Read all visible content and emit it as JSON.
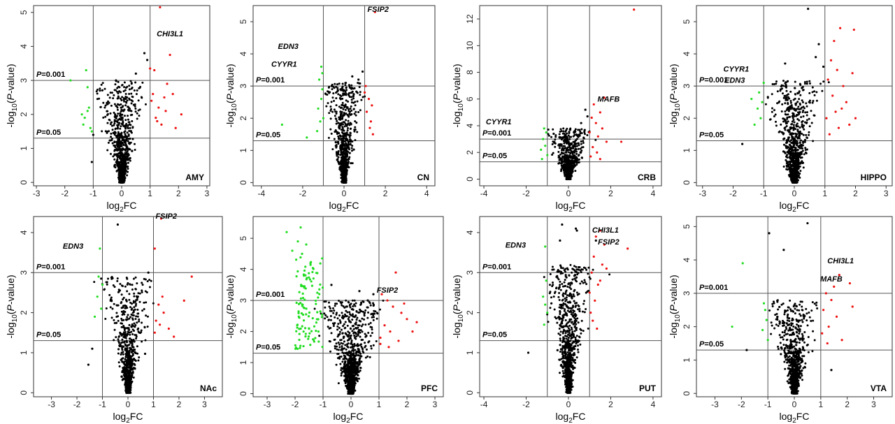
{
  "chart_data": [
    {
      "type": "scatter",
      "region": "AMY",
      "xlabel": "log2FC",
      "ylabel": "-log10(P-value)",
      "xlim": [
        -3.1,
        3.1
      ],
      "ylim": [
        -0.1,
        5.2
      ],
      "xticks": [
        -3,
        -2,
        -1,
        0,
        1,
        2,
        3
      ],
      "yticks": [
        0,
        1,
        2,
        3,
        4,
        5
      ],
      "thresholds": {
        "fc": 1,
        "p_lines": [
          {
            "label": "P=0.001",
            "y": 3
          },
          {
            "label": "P=0.05",
            "y": 1.301
          }
        ]
      },
      "cloud": {
        "width": 0.8,
        "max_y": 3.0,
        "n": 700
      },
      "green_points": [
        [
          -1.8,
          3.0
        ],
        [
          -1.25,
          3.3
        ],
        [
          -1.2,
          2.8
        ],
        [
          -1.15,
          2.2
        ],
        [
          -1.3,
          1.9
        ],
        [
          -1.1,
          1.6
        ],
        [
          -1.35,
          1.7
        ],
        [
          -1.05,
          1.5
        ],
        [
          -1.2,
          2.1
        ],
        [
          -1.4,
          2.0
        ]
      ],
      "red_points": [
        [
          1.35,
          5.15
        ],
        [
          1.7,
          3.75
        ],
        [
          1.15,
          3.3
        ],
        [
          1.0,
          3.35
        ],
        [
          1.1,
          2.6
        ],
        [
          1.5,
          2.5
        ],
        [
          1.3,
          2.2
        ],
        [
          1.8,
          2.6
        ],
        [
          2.1,
          2.0
        ],
        [
          1.2,
          1.9
        ],
        [
          1.4,
          1.7
        ],
        [
          1.6,
          2.9
        ],
        [
          1.05,
          2.4
        ],
        [
          1.9,
          1.6
        ],
        [
          1.25,
          1.8
        ],
        [
          1.55,
          2.1
        ]
      ],
      "black_points": [
        [
          0.8,
          3.8
        ],
        [
          0.9,
          3.6
        ],
        [
          -0.2,
          3.0
        ],
        [
          0.5,
          3.2
        ],
        [
          -1.0,
          1.4
        ],
        [
          -1.05,
          0.6
        ]
      ],
      "gene_labels": [
        {
          "text": "CHI3L1",
          "x": 1.7,
          "y": 4.3
        }
      ],
      "region_label": "AMY"
    },
    {
      "type": "scatter",
      "region": "CN",
      "xlabel": "log2FC",
      "ylabel": "-log10(P-value)",
      "xlim": [
        -4.4,
        4.4
      ],
      "ylim": [
        -0.1,
        5.5
      ],
      "xticks": [
        -4,
        -2,
        0,
        2,
        4
      ],
      "yticks": [
        0,
        1,
        2,
        3,
        4,
        5
      ],
      "thresholds": {
        "fc": 1,
        "p_lines": [
          {
            "label": "P=0.001",
            "y": 3
          },
          {
            "label": "P=0.05",
            "y": 1.301
          }
        ]
      },
      "cloud": {
        "width": 0.9,
        "max_y": 3.1,
        "n": 700
      },
      "green_points": [
        [
          -1.1,
          3.6
        ],
        [
          -1.05,
          3.4
        ],
        [
          -1.2,
          3.2
        ],
        [
          -1.1,
          2.6
        ],
        [
          -1.25,
          2.3
        ],
        [
          -1.0,
          2.0
        ],
        [
          -1.3,
          1.6
        ],
        [
          -1.15,
          1.9
        ],
        [
          -3.0,
          1.8
        ],
        [
          -1.8,
          1.4
        ],
        [
          -1.05,
          2.9
        ]
      ],
      "red_points": [
        [
          1.5,
          5.3
        ],
        [
          1.2,
          2.6
        ],
        [
          1.1,
          2.2
        ],
        [
          1.3,
          1.9
        ],
        [
          1.0,
          2.8
        ],
        [
          1.4,
          1.5
        ],
        [
          1.25,
          1.7
        ],
        [
          1.05,
          3.0
        ],
        [
          1.35,
          2.4
        ]
      ],
      "black_points": [
        [
          0.9,
          3.45
        ],
        [
          0.7,
          3.2
        ],
        [
          -0.6,
          3.0
        ],
        [
          0.4,
          3.3
        ]
      ],
      "gene_labels": [
        {
          "text": "FSIP2",
          "x": 1.65,
          "y": 5.3
        },
        {
          "text": "EDN3",
          "x": -2.7,
          "y": 4.15
        },
        {
          "text": "CYYR1",
          "x": -2.9,
          "y": 3.6
        }
      ],
      "region_label": "CN"
    },
    {
      "type": "scatter",
      "region": "CRB",
      "xlabel": "log2FC",
      "ylabel": "-log10(P-value)",
      "xlim": [
        -4.2,
        4.4
      ],
      "ylim": [
        -0.5,
        13
      ],
      "xticks": [
        -4,
        -2,
        0,
        2,
        4
      ],
      "yticks": [
        0,
        2,
        4,
        6,
        8,
        10,
        12
      ],
      "thresholds": {
        "fc": 1,
        "p_lines": [
          {
            "label": "P=0.001",
            "y": 3
          },
          {
            "label": "P=0.05",
            "y": 1.301
          }
        ]
      },
      "cloud": {
        "width": 1.0,
        "max_y": 3.8,
        "n": 650
      },
      "green_points": [
        [
          -1.05,
          3.5
        ],
        [
          -1.2,
          3.0
        ],
        [
          -1.1,
          2.5
        ],
        [
          -1.3,
          2.2
        ],
        [
          -1.0,
          1.8
        ],
        [
          -1.15,
          3.8
        ],
        [
          -1.25,
          1.5
        ]
      ],
      "red_points": [
        [
          3.1,
          12.7
        ],
        [
          1.7,
          6.1
        ],
        [
          1.2,
          5.6
        ],
        [
          1.5,
          5.0
        ],
        [
          1.1,
          4.6
        ],
        [
          1.3,
          4.2
        ],
        [
          1.6,
          3.8
        ],
        [
          1.0,
          3.5
        ],
        [
          1.4,
          3.2
        ],
        [
          1.8,
          2.8
        ],
        [
          2.5,
          2.8
        ],
        [
          1.15,
          2.4
        ],
        [
          1.35,
          2.0
        ],
        [
          1.05,
          1.7
        ],
        [
          1.5,
          1.5
        ]
      ],
      "black_points": [
        [
          0.9,
          4.7
        ],
        [
          0.8,
          5.2
        ],
        [
          0.6,
          4.2
        ],
        [
          -0.7,
          3.4
        ]
      ],
      "gene_labels": [
        {
          "text": "MAFB",
          "x": 1.9,
          "y": 5.8
        },
        {
          "text": "CYYR1",
          "x": -3.3,
          "y": 4.1
        }
      ],
      "region_label": "CRB"
    },
    {
      "type": "scatter",
      "region": "HIPPO",
      "xlabel": "log2FC",
      "ylabel": "-log10(P-value)",
      "xlim": [
        -3.2,
        3.2
      ],
      "ylim": [
        -0.1,
        5.5
      ],
      "xticks": [
        -3,
        -2,
        -1,
        0,
        1,
        2,
        3
      ],
      "yticks": [
        0,
        1,
        2,
        3,
        4,
        5
      ],
      "thresholds": {
        "fc": 1,
        "p_lines": [
          {
            "label": "P=0.001",
            "y": 3
          },
          {
            "label": "P=0.05",
            "y": 1.301
          }
        ]
      },
      "cloud": {
        "width": 0.85,
        "max_y": 3.2,
        "n": 750
      },
      "green_points": [
        [
          -1.0,
          3.1
        ],
        [
          -1.15,
          2.8
        ],
        [
          -1.2,
          2.3
        ],
        [
          -1.1,
          2.0
        ],
        [
          -1.3,
          1.8
        ],
        [
          -1.05,
          2.5
        ],
        [
          -1.4,
          2.6
        ]
      ],
      "red_points": [
        [
          1.5,
          4.8
        ],
        [
          1.95,
          4.75
        ],
        [
          1.3,
          4.4
        ],
        [
          1.2,
          3.8
        ],
        [
          1.4,
          3.5
        ],
        [
          1.1,
          3.2
        ],
        [
          1.6,
          3.0
        ],
        [
          1.25,
          2.7
        ],
        [
          1.7,
          2.5
        ],
        [
          1.35,
          2.2
        ],
        [
          1.05,
          2.0
        ],
        [
          1.8,
          1.8
        ],
        [
          1.45,
          1.7
        ],
        [
          1.15,
          1.5
        ],
        [
          2.0,
          2.0
        ],
        [
          1.55,
          2.3
        ],
        [
          1.9,
          3.4
        ]
      ],
      "black_points": [
        [
          0.45,
          5.4
        ],
        [
          0.8,
          4.3
        ],
        [
          0.7,
          3.9
        ],
        [
          -0.3,
          3.7
        ],
        [
          -1.7,
          1.2
        ],
        [
          0.95,
          3.6
        ]
      ],
      "gene_labels": [
        {
          "text": "CYYR1",
          "x": -1.9,
          "y": 3.45
        },
        {
          "text": "EDN3",
          "x": -1.95,
          "y": 3.1
        }
      ],
      "region_label": "HIPPO"
    },
    {
      "type": "scatter",
      "region": "NAc",
      "xlabel": "log2FC",
      "ylabel": "-log10(P-value)",
      "xlim": [
        -3.7,
        3.7
      ],
      "ylim": [
        -0.1,
        4.4
      ],
      "xticks": [
        -3,
        -2,
        -1,
        0,
        1,
        2,
        3
      ],
      "yticks": [
        0,
        1,
        2,
        3,
        4
      ],
      "thresholds": {
        "fc": 1,
        "p_lines": [
          {
            "label": "P=0.001",
            "y": 3
          },
          {
            "label": "P=0.05",
            "y": 1.301
          }
        ]
      },
      "cloud": {
        "width": 0.85,
        "max_y": 2.9,
        "n": 650
      },
      "green_points": [
        [
          -1.1,
          3.6
        ],
        [
          -1.0,
          2.7
        ],
        [
          -1.2,
          2.4
        ],
        [
          -1.05,
          2.1
        ],
        [
          -1.3,
          1.9
        ],
        [
          -1.15,
          2.9
        ]
      ],
      "red_points": [
        [
          1.3,
          4.35
        ],
        [
          1.05,
          3.6
        ],
        [
          2.5,
          2.9
        ],
        [
          1.2,
          2.2
        ],
        [
          1.4,
          2.0
        ],
        [
          1.1,
          1.8
        ],
        [
          1.6,
          1.6
        ],
        [
          1.35,
          2.4
        ],
        [
          1.05,
          1.5
        ],
        [
          1.8,
          1.4
        ],
        [
          2.2,
          2.3
        ],
        [
          1.25,
          1.7
        ]
      ],
      "black_points": [
        [
          -0.4,
          4.2
        ],
        [
          0.8,
          3.0
        ],
        [
          -1.05,
          2.85
        ],
        [
          -1.55,
          0.7
        ],
        [
          -1.4,
          1.1
        ]
      ],
      "gene_labels": [
        {
          "text": "FSIP2",
          "x": 1.5,
          "y": 4.35
        },
        {
          "text": "EDN3",
          "x": -2.15,
          "y": 3.6
        }
      ],
      "region_label": "NAc"
    },
    {
      "type": "scatter",
      "region": "PFC",
      "xlabel": "log2FC",
      "ylabel": "-log10(P-value)",
      "xlim": [
        -3.5,
        3.3
      ],
      "ylim": [
        -0.1,
        5.7
      ],
      "xticks": [
        -3,
        -2,
        -1,
        0,
        1,
        2,
        3
      ],
      "yticks": [
        0,
        1,
        2,
        3,
        4,
        5
      ],
      "thresholds": {
        "fc": 1,
        "p_lines": [
          {
            "label": "P=0.001",
            "y": 3
          },
          {
            "label": "P=0.05",
            "y": 1.301
          }
        ]
      },
      "cloud": {
        "width": 1.05,
        "max_y": 3.0,
        "n": 950
      },
      "green_points": [],
      "green_cluster": {
        "x_min": -2.0,
        "x_max": -1.0,
        "y_min": 1.4,
        "y_max": 4.4,
        "n": 110,
        "extra": [
          [
            -2.3,
            5.2
          ],
          [
            -1.8,
            5.35
          ],
          [
            -1.9,
            4.9
          ],
          [
            -2.1,
            4.6
          ],
          [
            -1.6,
            4.8
          ],
          [
            -1.75,
            4.5
          ],
          [
            -1.45,
            4.2
          ]
        ]
      },
      "red_points": [
        [
          1.6,
          3.9
        ],
        [
          1.1,
          3.2
        ],
        [
          1.3,
          3.0
        ],
        [
          1.5,
          2.8
        ],
        [
          1.8,
          2.6
        ],
        [
          2.0,
          2.4
        ],
        [
          1.2,
          2.2
        ],
        [
          1.4,
          2.0
        ],
        [
          1.05,
          1.8
        ],
        [
          1.7,
          1.7
        ],
        [
          2.2,
          2.0
        ],
        [
          1.35,
          1.5
        ],
        [
          1.05,
          1.6
        ],
        [
          1.9,
          2.9
        ],
        [
          2.35,
          2.3
        ]
      ],
      "black_points": [
        [
          0.8,
          3.2
        ],
        [
          0.6,
          3.0
        ],
        [
          -0.7,
          3.5
        ],
        [
          0.3,
          3.3
        ]
      ],
      "gene_labels": [
        {
          "text": "FSIP2",
          "x": 1.3,
          "y": 3.25
        }
      ],
      "region_label": "PFC"
    },
    {
      "type": "scatter",
      "region": "PUT",
      "xlabel": "log2FC",
      "ylabel": "-log10(P-value)",
      "xlim": [
        -4.2,
        4.4
      ],
      "ylim": [
        -0.1,
        4.4
      ],
      "xticks": [
        -4,
        -2,
        0,
        2,
        4
      ],
      "yticks": [
        0,
        1,
        2,
        3,
        4
      ],
      "thresholds": {
        "fc": 1,
        "p_lines": [
          {
            "label": "P=0.001",
            "y": 3
          },
          {
            "label": "P=0.05",
            "y": 1.301
          }
        ]
      },
      "cloud": {
        "width": 1.1,
        "max_y": 3.2,
        "n": 850
      },
      "green_points": [
        [
          -1.1,
          3.65
        ],
        [
          -1.05,
          2.8
        ],
        [
          -1.2,
          2.4
        ],
        [
          -1.0,
          2.0
        ],
        [
          -1.15,
          1.7
        ],
        [
          -1.1,
          2.2
        ]
      ],
      "red_points": [
        [
          1.5,
          4.05
        ],
        [
          1.3,
          3.9
        ],
        [
          2.8,
          3.6
        ],
        [
          1.7,
          3.7
        ],
        [
          1.2,
          3.4
        ],
        [
          1.6,
          3.2
        ],
        [
          1.1,
          3.0
        ],
        [
          1.4,
          2.7
        ],
        [
          1.0,
          2.5
        ],
        [
          1.25,
          2.3
        ],
        [
          1.05,
          2.0
        ],
        [
          1.15,
          1.8
        ],
        [
          1.35,
          1.6
        ],
        [
          1.5,
          2.8
        ],
        [
          1.8,
          3.1
        ]
      ],
      "black_points": [
        [
          -0.3,
          4.2
        ],
        [
          0.4,
          4.05
        ],
        [
          0.35,
          4.1
        ],
        [
          -0.4,
          3.8
        ],
        [
          1.3,
          3.8
        ],
        [
          -1.9,
          1.0
        ]
      ],
      "gene_labels": [
        {
          "text": "CHI3L1",
          "x": 1.75,
          "y": 4.0
        },
        {
          "text": "FSIP2",
          "x": 1.9,
          "y": 3.7
        },
        {
          "text": "EDN3",
          "x": -2.5,
          "y": 3.62
        }
      ],
      "region_label": "PUT"
    },
    {
      "type": "scatter",
      "region": "VTA",
      "xlabel": "log2FC",
      "ylabel": "-log10(P-value)",
      "xlim": [
        -3.7,
        3.7
      ],
      "ylim": [
        -0.1,
        5.3
      ],
      "xticks": [
        -3,
        -2,
        -1,
        0,
        1,
        2,
        3
      ],
      "yticks": [
        0,
        1,
        2,
        3,
        4,
        5
      ],
      "thresholds": {
        "fc": 1,
        "p_lines": [
          {
            "label": "P=0.001",
            "y": 3
          },
          {
            "label": "P=0.05",
            "y": 1.301
          }
        ]
      },
      "cloud": {
        "width": 0.85,
        "max_y": 2.8,
        "n": 650
      },
      "green_points": [
        [
          -1.95,
          3.9
        ],
        [
          -2.35,
          2.0
        ],
        [
          -1.1,
          2.5
        ],
        [
          -1.05,
          2.2
        ],
        [
          -1.2,
          1.9
        ],
        [
          -1.0,
          1.6
        ],
        [
          -1.15,
          2.7
        ]
      ],
      "red_points": [
        [
          2.1,
          3.3
        ],
        [
          1.7,
          3.55
        ],
        [
          1.5,
          3.2
        ],
        [
          1.2,
          3.0
        ],
        [
          1.4,
          2.8
        ],
        [
          1.1,
          2.5
        ],
        [
          1.6,
          2.3
        ],
        [
          1.3,
          2.0
        ],
        [
          1.05,
          1.8
        ],
        [
          1.8,
          1.6
        ],
        [
          2.2,
          2.6
        ],
        [
          1.25,
          1.5
        ]
      ],
      "black_points": [
        [
          -0.95,
          4.8
        ],
        [
          0.5,
          5.1
        ],
        [
          -0.4,
          4.3
        ],
        [
          1.4,
          0.7
        ],
        [
          -1.8,
          1.3
        ]
      ],
      "gene_labels": [
        {
          "text": "CHI3L1",
          "x": 1.75,
          "y": 3.9
        },
        {
          "text": "MAFB",
          "x": 1.4,
          "y": 3.35
        }
      ],
      "region_label": "VTA"
    }
  ],
  "colors": {
    "up": "#ee1111",
    "down": "#22dd22",
    "ns": "#000000"
  }
}
